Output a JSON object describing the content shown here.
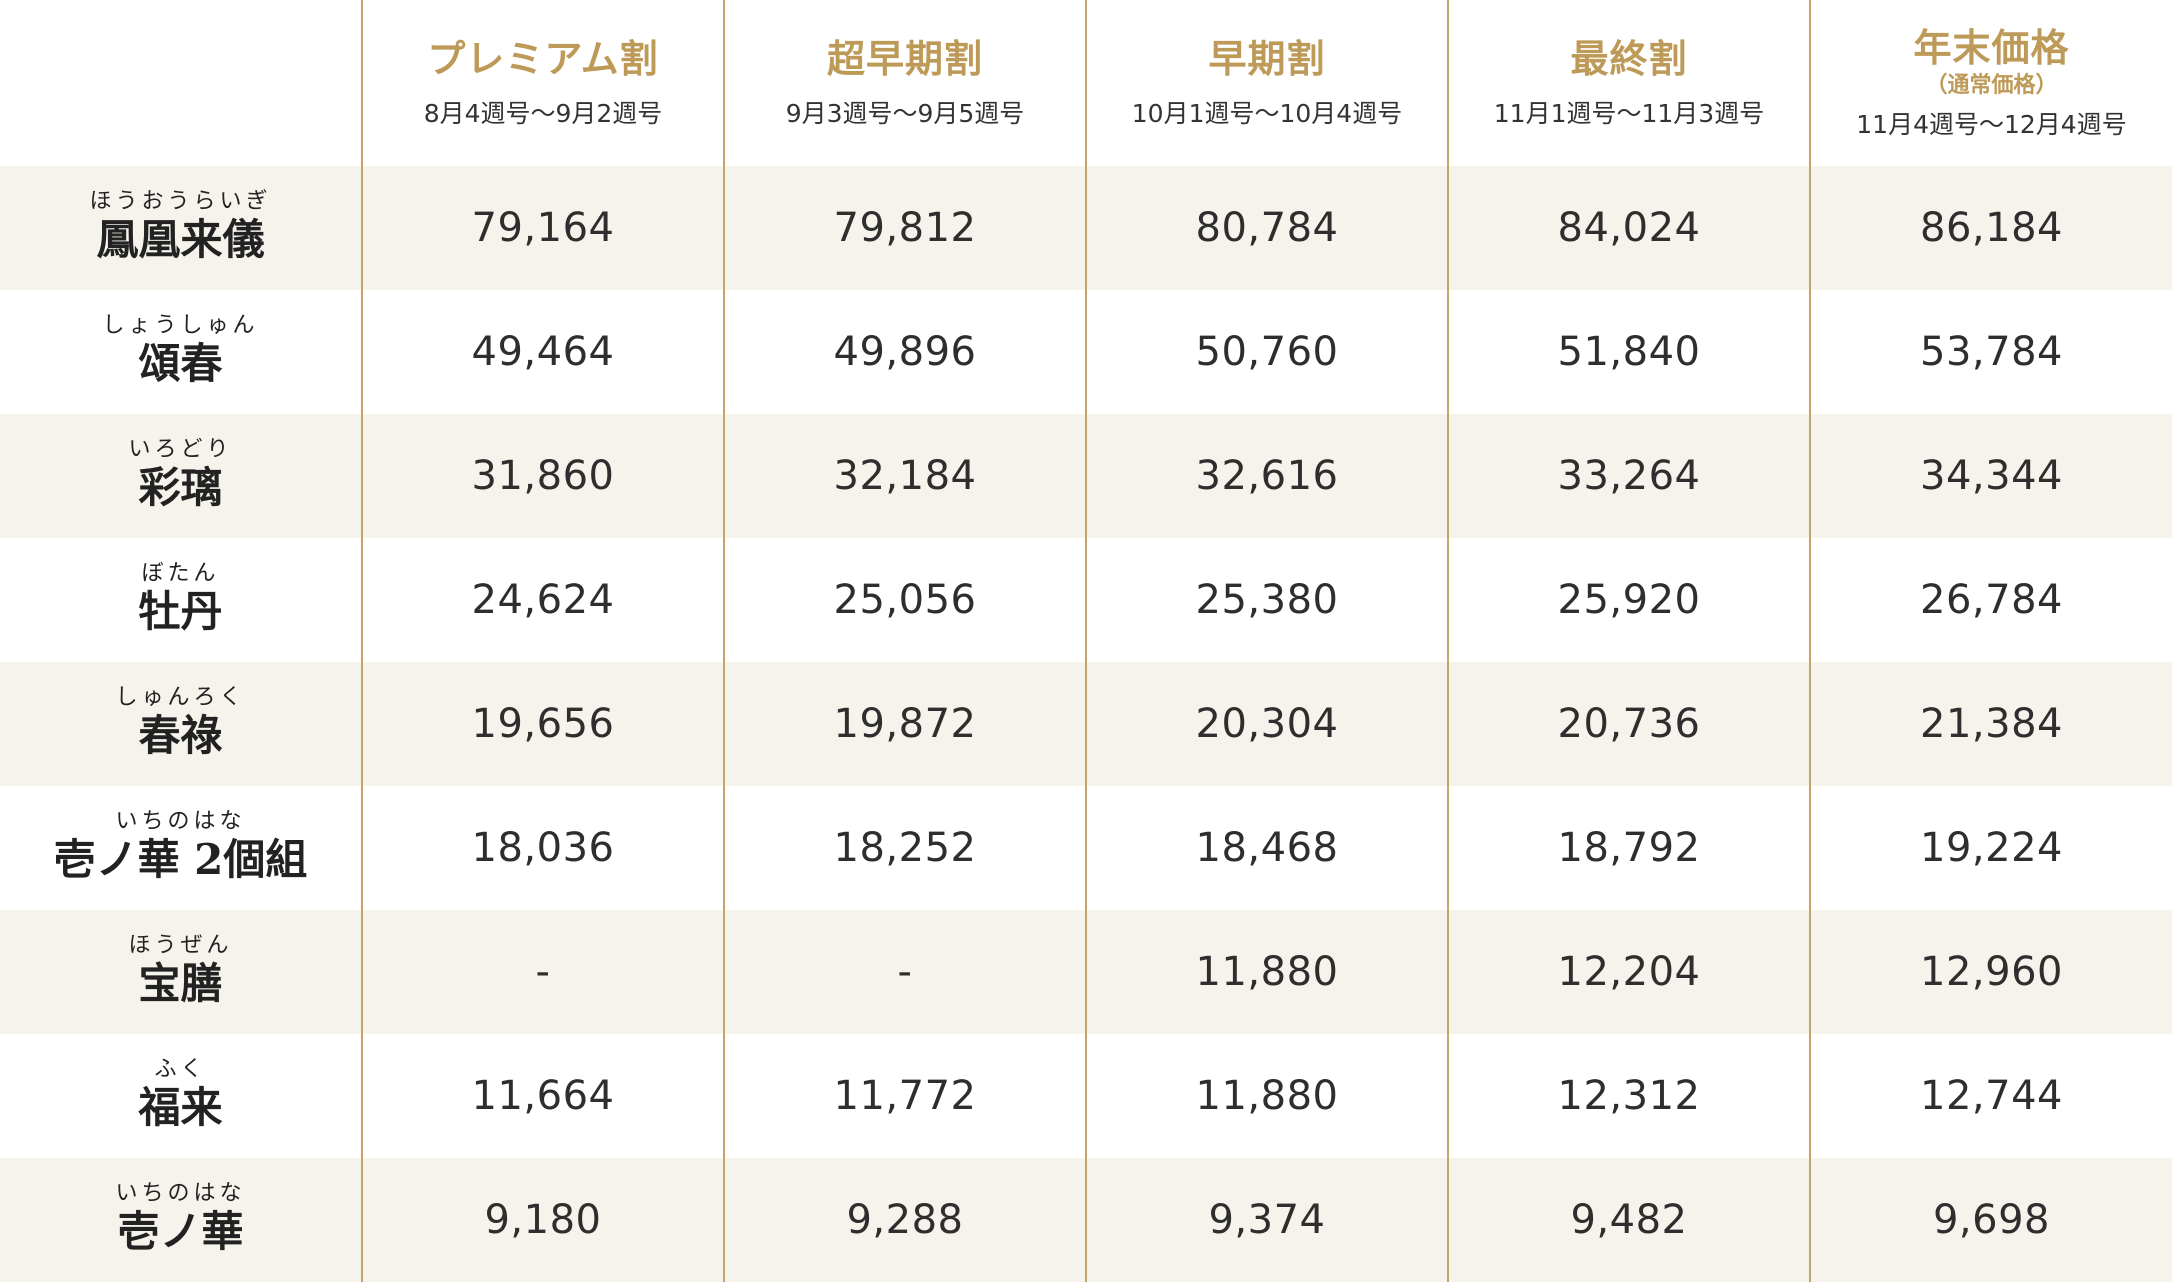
{
  "header": {
    "columns": [
      {
        "title": "プレミアム割",
        "note": "",
        "period": "8月4週号〜9月2週号"
      },
      {
        "title": "超早期割",
        "note": "",
        "period": "9月3週号〜9月5週号"
      },
      {
        "title": "早期割",
        "note": "",
        "period": "10月1週号〜10月4週号"
      },
      {
        "title": "最終割",
        "note": "",
        "period": "11月1週号〜11月3週号"
      },
      {
        "title": "年末価格",
        "note": "（通常価格）",
        "period": "11月4週号〜12月4週号"
      }
    ]
  },
  "rows": [
    {
      "ruby": "ほうおうらいぎ",
      "name": "鳳凰来儀",
      "prices": [
        "79,164",
        "79,812",
        "80,784",
        "84,024",
        "86,184"
      ]
    },
    {
      "ruby": "しょうしゅん",
      "name": "頌春",
      "prices": [
        "49,464",
        "49,896",
        "50,760",
        "51,840",
        "53,784"
      ]
    },
    {
      "ruby": "いろどり",
      "name": "彩璃",
      "prices": [
        "31,860",
        "32,184",
        "32,616",
        "33,264",
        "34,344"
      ]
    },
    {
      "ruby": "ぼたん",
      "name": "牡丹",
      "prices": [
        "24,624",
        "25,056",
        "25,380",
        "25,920",
        "26,784"
      ]
    },
    {
      "ruby": "しゅんろく",
      "name": "春祿",
      "prices": [
        "19,656",
        "19,872",
        "20,304",
        "20,736",
        "21,384"
      ]
    },
    {
      "ruby": "いちのはな",
      "name": "壱ノ華 2個組",
      "prices": [
        "18,036",
        "18,252",
        "18,468",
        "18,792",
        "19,224"
      ]
    },
    {
      "ruby": "ほうぜん",
      "name": "宝膳",
      "prices": [
        "-",
        "-",
        "11,880",
        "12,204",
        "12,960"
      ]
    },
    {
      "ruby": "ふく",
      "name": "福来",
      "prices": [
        "11,664",
        "11,772",
        "11,880",
        "12,312",
        "12,744"
      ]
    },
    {
      "ruby": "いちのはな",
      "name": "壱ノ華",
      "prices": [
        "9,180",
        "9,288",
        "9,374",
        "9,482",
        "9,698"
      ]
    }
  ],
  "colors": {
    "accent_gold": "#bd9a58",
    "divider": "#c3a46c",
    "row_shade": "#f6f3ec",
    "text": "#2b2b2b"
  }
}
